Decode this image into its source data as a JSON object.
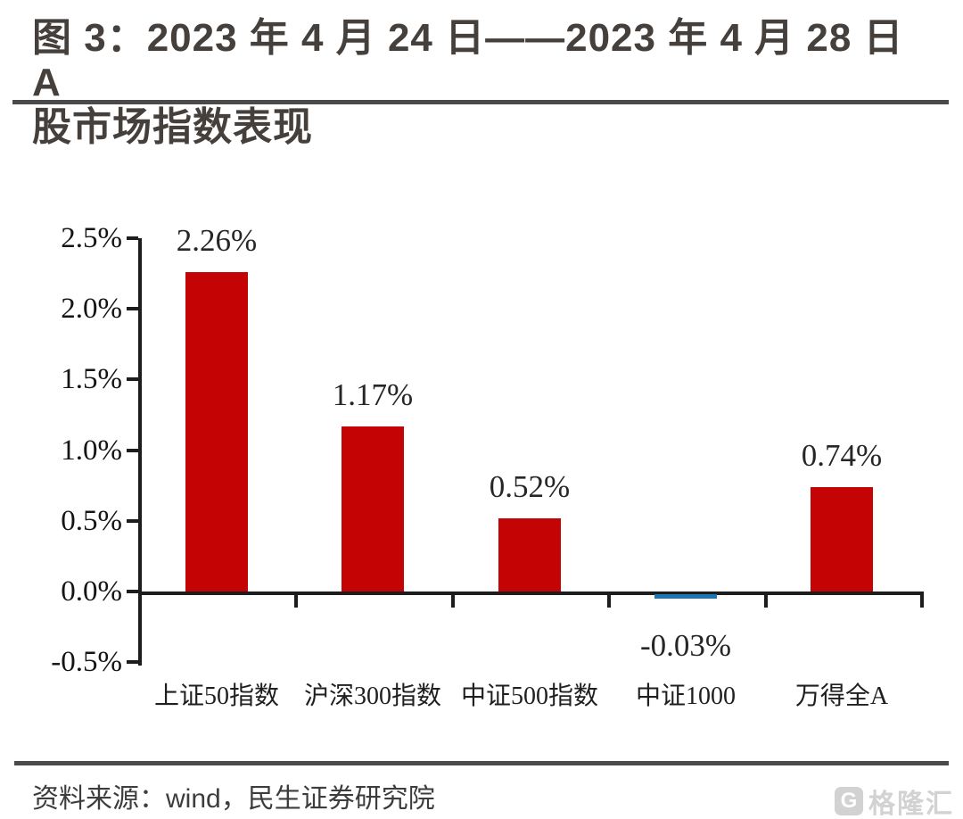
{
  "page": {
    "title_line1": "图 3：2023 年 4 月 24 日——2023 年 4 月 28 日 A",
    "title_line2": "股市场指数表现",
    "source_text": "资料来源：wind，民生证券研究院",
    "watermark": {
      "icon": "G",
      "text": "格隆汇"
    },
    "colors": {
      "title": "#46403c",
      "rule": "#4a4a4a",
      "axis": "#1d1d1d",
      "y_label": "#141414",
      "data_label": "#262626",
      "category_label": "#1f1f1f",
      "source": "#3d3d3d",
      "watermark": "#d2d2d2",
      "bar_red": "#c40404",
      "bar_blue": "#1f74b4"
    }
  },
  "chart_data": {
    "type": "bar",
    "title": "图 3：2023 年 4 月 24 日——2023 年 4 月 28 日 A 股市场指数表现",
    "categories": [
      "上证50指数",
      "沪深300指数",
      "中证500指数",
      "中证1000",
      "万得全A"
    ],
    "values": [
      2.26,
      1.17,
      0.52,
      -0.03,
      0.74
    ],
    "data_labels": [
      "2.26%",
      "1.17%",
      "0.52%",
      "-0.03%",
      "0.74%"
    ],
    "bar_colors": [
      "#c40404",
      "#c40404",
      "#c40404",
      "#1f74b4",
      "#c40404"
    ],
    "y_ticks": [
      "2.5%",
      "2.0%",
      "1.5%",
      "1.0%",
      "0.5%",
      "0.0%",
      "-0.5%"
    ],
    "y_tick_values": [
      2.5,
      2.0,
      1.5,
      1.0,
      0.5,
      0.0,
      -0.5
    ],
    "ylim": [
      -0.5,
      2.5
    ],
    "xlabel": "",
    "ylabel": "",
    "grid": false,
    "legend": null
  }
}
